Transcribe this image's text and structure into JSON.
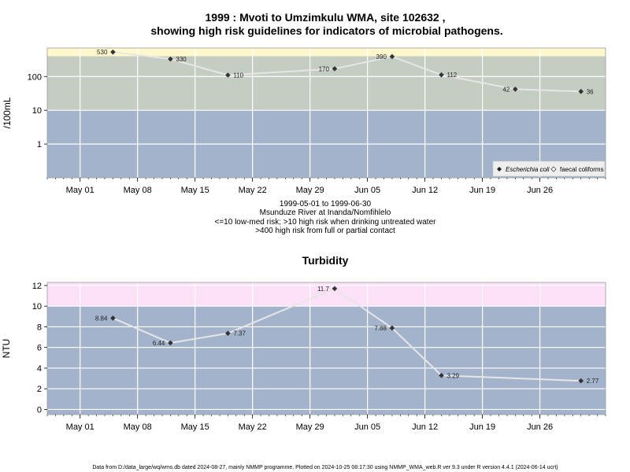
{
  "chart_data": [
    {
      "type": "line",
      "title_line1": "1999 : Mvoti to Umzimkulu WMA, site 102632 ,",
      "title_line2": "showing high risk guidelines for indicators of microbial pathogens.",
      "ylabel": "/100mL",
      "scale": "log",
      "ylim": [
        0.1,
        700
      ],
      "xlim": [
        "1999-04-27",
        "1999-07-04"
      ],
      "yticks": [
        1,
        10,
        100
      ],
      "ytick_labels": [
        "1",
        "10",
        "100"
      ],
      "xticks": [
        "1999-05-01",
        "1999-05-08",
        "1999-05-15",
        "1999-05-22",
        "1999-05-29",
        "1999-06-05",
        "1999-06-12",
        "1999-06-19",
        "1999-06-26"
      ],
      "xtick_labels": [
        "May 01",
        "May 08",
        "May 15",
        "May 22",
        "May 29",
        "Jun 05",
        "Jun 12",
        "Jun 19",
        "Jun 26"
      ],
      "bands": [
        {
          "from": 0.1,
          "to": 10,
          "color": "#a3b3cc"
        },
        {
          "from": 10,
          "to": 400,
          "color": "#c5cdc2"
        },
        {
          "from": 400,
          "to": 700,
          "color": "#fff8cc"
        }
      ],
      "series": [
        {
          "name": "Escherichia coli",
          "x": [
            "1999-05-05",
            "1999-05-12",
            "1999-05-19",
            "1999-06-01",
            "1999-06-08",
            "1999-06-14",
            "1999-06-23",
            "1999-07-01"
          ],
          "values": [
            530,
            330,
            110,
            170,
            390,
            112,
            42,
            36
          ],
          "labels": [
            "530",
            "330",
            "110",
            "170",
            "390",
            "112",
            "42",
            "36"
          ]
        }
      ],
      "legend": [
        "Escherichia coli",
        "faecal coliforms"
      ],
      "legend_position": "bottom-right",
      "caption": [
        "1999-05-01 to 1999-06-30",
        "Msunduze River at Inanda/Nomfihlelo",
        "<=10 low-med risk; >10 high risk when drinking untreated water",
        ">400 high risk from full or partial contact"
      ]
    },
    {
      "type": "line",
      "title": "Turbidity",
      "ylabel": "NTU",
      "ylim": [
        -0.5,
        12.3
      ],
      "xlim": [
        "1999-04-27",
        "1999-07-04"
      ],
      "yticks": [
        0,
        2,
        4,
        6,
        8,
        10,
        12
      ],
      "ytick_labels": [
        "0",
        "2",
        "4",
        "6",
        "8",
        "10",
        "12"
      ],
      "xticks": [
        "1999-05-01",
        "1999-05-08",
        "1999-05-15",
        "1999-05-22",
        "1999-05-29",
        "1999-06-05",
        "1999-06-12",
        "1999-06-19",
        "1999-06-26"
      ],
      "xtick_labels": [
        "May 01",
        "May 08",
        "May 15",
        "May 22",
        "May 29",
        "Jun 05",
        "Jun 12",
        "Jun 19",
        "Jun 26"
      ],
      "bands": [
        {
          "from": -0.5,
          "to": 10,
          "color": "#a3b3cc"
        },
        {
          "from": 10,
          "to": 12.3,
          "color": "#fce0f8"
        }
      ],
      "series": [
        {
          "x": [
            "1999-05-05",
            "1999-05-12",
            "1999-05-19",
            "1999-06-01",
            "1999-06-08",
            "1999-06-14",
            "1999-07-01"
          ],
          "values": [
            8.84,
            6.44,
            7.37,
            11.7,
            7.88,
            3.29,
            2.77
          ],
          "labels": [
            "8.84",
            "6.44",
            "7.37",
            "11.7",
            "7.88",
            "3.29",
            "2.77"
          ]
        }
      ]
    }
  ],
  "footer": "Data from D:/data_large/wq/wms.db dated 2024-08-27, mainly NMMP programme. Plotted on 2024-10-25 08:17:30 using NMMP_WMA_web.R ver 9.3 under R version 4.4.1 (2024-06-14 ucrt)"
}
